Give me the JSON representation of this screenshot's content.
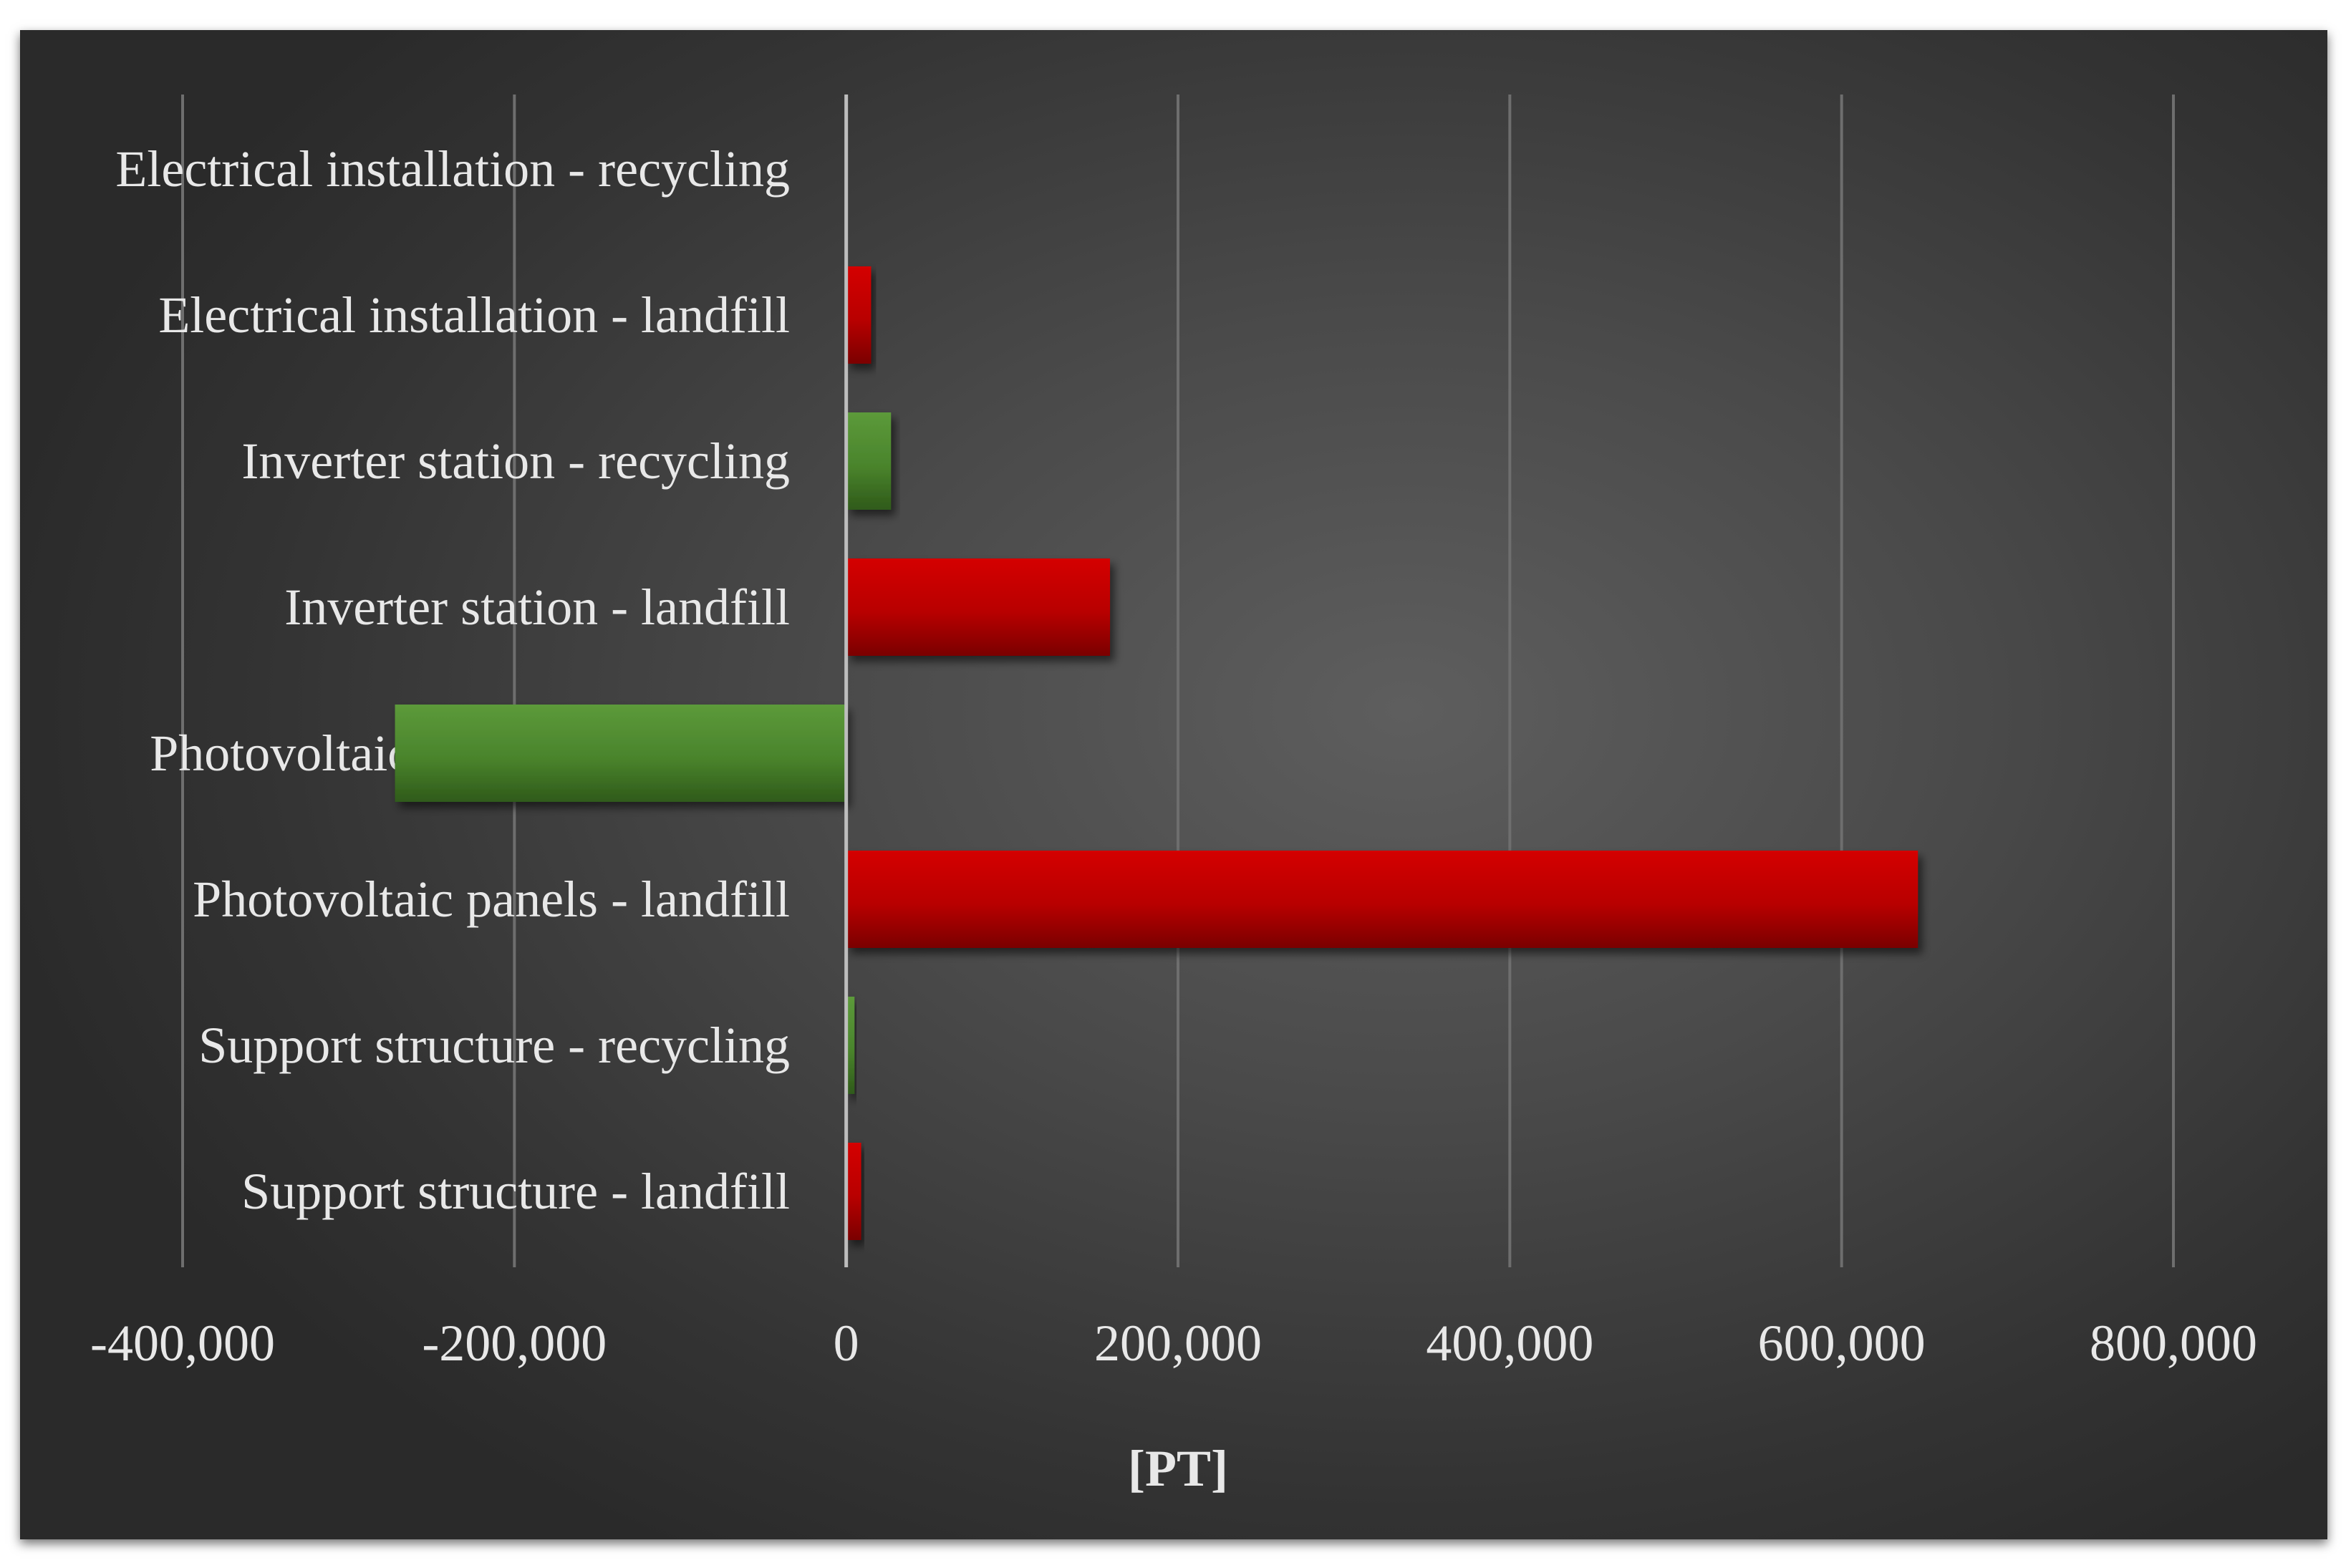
{
  "chart_data": {
    "type": "bar",
    "orientation": "horizontal",
    "categories": [
      "Electrical installation - recycling",
      "Electrical installation - landfill",
      "Inverter station - recycling",
      "Inverter station - landfill",
      "Photovoltaic panels - recycling",
      "Photovoltaic panels - landfill",
      "Support structure - recycling",
      "Support structure - landfill"
    ],
    "values": [
      0,
      15000,
      27000,
      159000,
      -272000,
      646000,
      5000,
      9000
    ],
    "bar_colors": [
      "#4e8a2f",
      "#c00000",
      "#4e8a2f",
      "#c00000",
      "#4e8a2f",
      "#c00000",
      "#4e8a2f",
      "#c00000"
    ],
    "xlim": [
      -400000,
      800000
    ],
    "x_ticks": [
      -400000,
      -200000,
      0,
      200000,
      400000,
      600000,
      800000
    ],
    "x_tick_labels": [
      "-400,000",
      "-200,000",
      "0",
      "200,000",
      "400,000",
      "600,000",
      "800,000"
    ],
    "xlabel": "[PT]",
    "title": "",
    "grid": true,
    "legend": "none"
  },
  "colors": {
    "recycling": "#4e8a2f",
    "landfill": "#c00000",
    "background": "#3c3c3c",
    "text": "#e8e8e8"
  }
}
